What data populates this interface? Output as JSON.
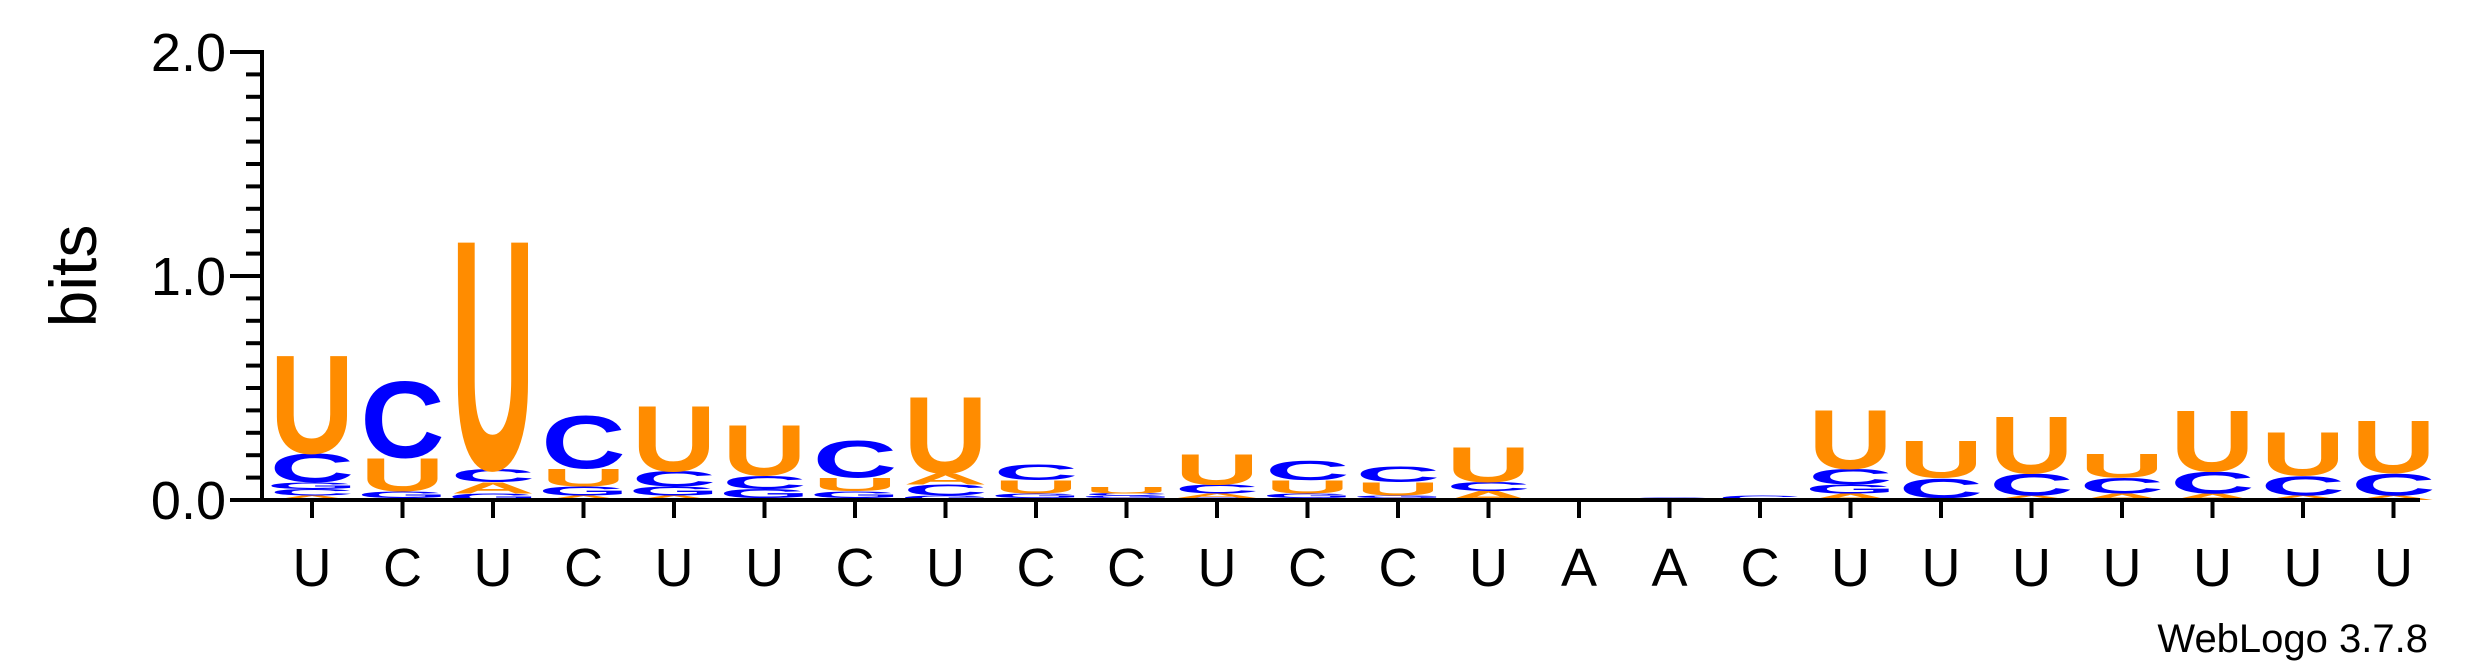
{
  "chart_data": {
    "type": "sequence-logo",
    "ylabel": "bits",
    "ylim": [
      0,
      2.0
    ],
    "yticks": [
      "0.0",
      "1.0",
      "2.0"
    ],
    "colors": {
      "U": "#ff8c00",
      "C": "#0000ff",
      "A": "#ff8c00",
      "G": "#0000ff"
    },
    "credit": "WebLogo 3.7.8",
    "positions": [
      {
        "label": "U",
        "stack": [
          [
            "A",
            0.02
          ],
          [
            "C",
            0.03
          ],
          [
            "G",
            0.03
          ],
          [
            "C",
            0.13
          ],
          [
            "U",
            0.45
          ]
        ]
      },
      {
        "label": "C",
        "stack": [
          [
            "A",
            0.01
          ],
          [
            "G",
            0.03
          ],
          [
            "U",
            0.15
          ],
          [
            "C",
            0.35
          ]
        ]
      },
      {
        "label": "U",
        "stack": [
          [
            "G",
            0.03
          ],
          [
            "A",
            0.05
          ],
          [
            "C",
            0.06
          ],
          [
            "U",
            1.05
          ]
        ]
      },
      {
        "label": "C",
        "stack": [
          [
            "A",
            0.02
          ],
          [
            "G",
            0.04
          ],
          [
            "U",
            0.08
          ],
          [
            "C",
            0.24
          ]
        ]
      },
      {
        "label": "U",
        "stack": [
          [
            "A",
            0.02
          ],
          [
            "G",
            0.04
          ],
          [
            "C",
            0.07
          ],
          [
            "U",
            0.3
          ]
        ]
      },
      {
        "label": "U",
        "stack": [
          [
            "A",
            0.01
          ],
          [
            "G",
            0.04
          ],
          [
            "C",
            0.06
          ],
          [
            "U",
            0.23
          ]
        ]
      },
      {
        "label": "C",
        "stack": [
          [
            "A",
            0.01
          ],
          [
            "G",
            0.03
          ],
          [
            "U",
            0.06
          ],
          [
            "C",
            0.17
          ]
        ]
      },
      {
        "label": "U",
        "stack": [
          [
            "G",
            0.02
          ],
          [
            "C",
            0.05
          ],
          [
            "A",
            0.05
          ],
          [
            "U",
            0.35
          ]
        ]
      },
      {
        "label": "C",
        "stack": [
          [
            "A",
            0.01
          ],
          [
            "G",
            0.02
          ],
          [
            "U",
            0.06
          ],
          [
            "C",
            0.07
          ]
        ]
      },
      {
        "label": "C",
        "stack": [
          [
            "A",
            0.01
          ],
          [
            "G",
            0.01
          ],
          [
            "C",
            0.01
          ],
          [
            "U",
            0.03
          ]
        ]
      },
      {
        "label": "U",
        "stack": [
          [
            "G",
            0.01
          ],
          [
            "A",
            0.02
          ],
          [
            "C",
            0.04
          ],
          [
            "U",
            0.14
          ]
        ]
      },
      {
        "label": "C",
        "stack": [
          [
            "A",
            0.01
          ],
          [
            "G",
            0.02
          ],
          [
            "U",
            0.06
          ],
          [
            "C",
            0.09
          ]
        ]
      },
      {
        "label": "C",
        "stack": [
          [
            "A",
            0.01
          ],
          [
            "G",
            0.01
          ],
          [
            "U",
            0.06
          ],
          [
            "C",
            0.07
          ]
        ]
      },
      {
        "label": "U",
        "stack": [
          [
            "A",
            0.04
          ],
          [
            "C",
            0.04
          ],
          [
            "U",
            0.16
          ]
        ]
      },
      {
        "label": "A",
        "stack": []
      },
      {
        "label": "A",
        "stack": [
          [
            "C",
            0.01
          ]
        ]
      },
      {
        "label": "C",
        "stack": [
          [
            "C",
            0.02
          ]
        ]
      },
      {
        "label": "U",
        "stack": [
          [
            "A",
            0.03
          ],
          [
            "G",
            0.04
          ],
          [
            "C",
            0.07
          ],
          [
            "U",
            0.27
          ]
        ]
      },
      {
        "label": "U",
        "stack": [
          [
            "A",
            0.01
          ],
          [
            "C",
            0.09
          ],
          [
            "U",
            0.17
          ]
        ]
      },
      {
        "label": "U",
        "stack": [
          [
            "A",
            0.02
          ],
          [
            "C",
            0.1
          ],
          [
            "U",
            0.26
          ]
        ]
      },
      {
        "label": "U",
        "stack": [
          [
            "A",
            0.03
          ],
          [
            "C",
            0.07
          ],
          [
            "U",
            0.11
          ]
        ]
      },
      {
        "label": "U",
        "stack": [
          [
            "A",
            0.03
          ],
          [
            "C",
            0.1
          ],
          [
            "U",
            0.28
          ]
        ]
      },
      {
        "label": "U",
        "stack": [
          [
            "A",
            0.02
          ],
          [
            "C",
            0.09
          ],
          [
            "U",
            0.2
          ]
        ]
      },
      {
        "label": "U",
        "stack": [
          [
            "A",
            0.02
          ],
          [
            "C",
            0.1
          ],
          [
            "U",
            0.24
          ]
        ]
      }
    ]
  }
}
